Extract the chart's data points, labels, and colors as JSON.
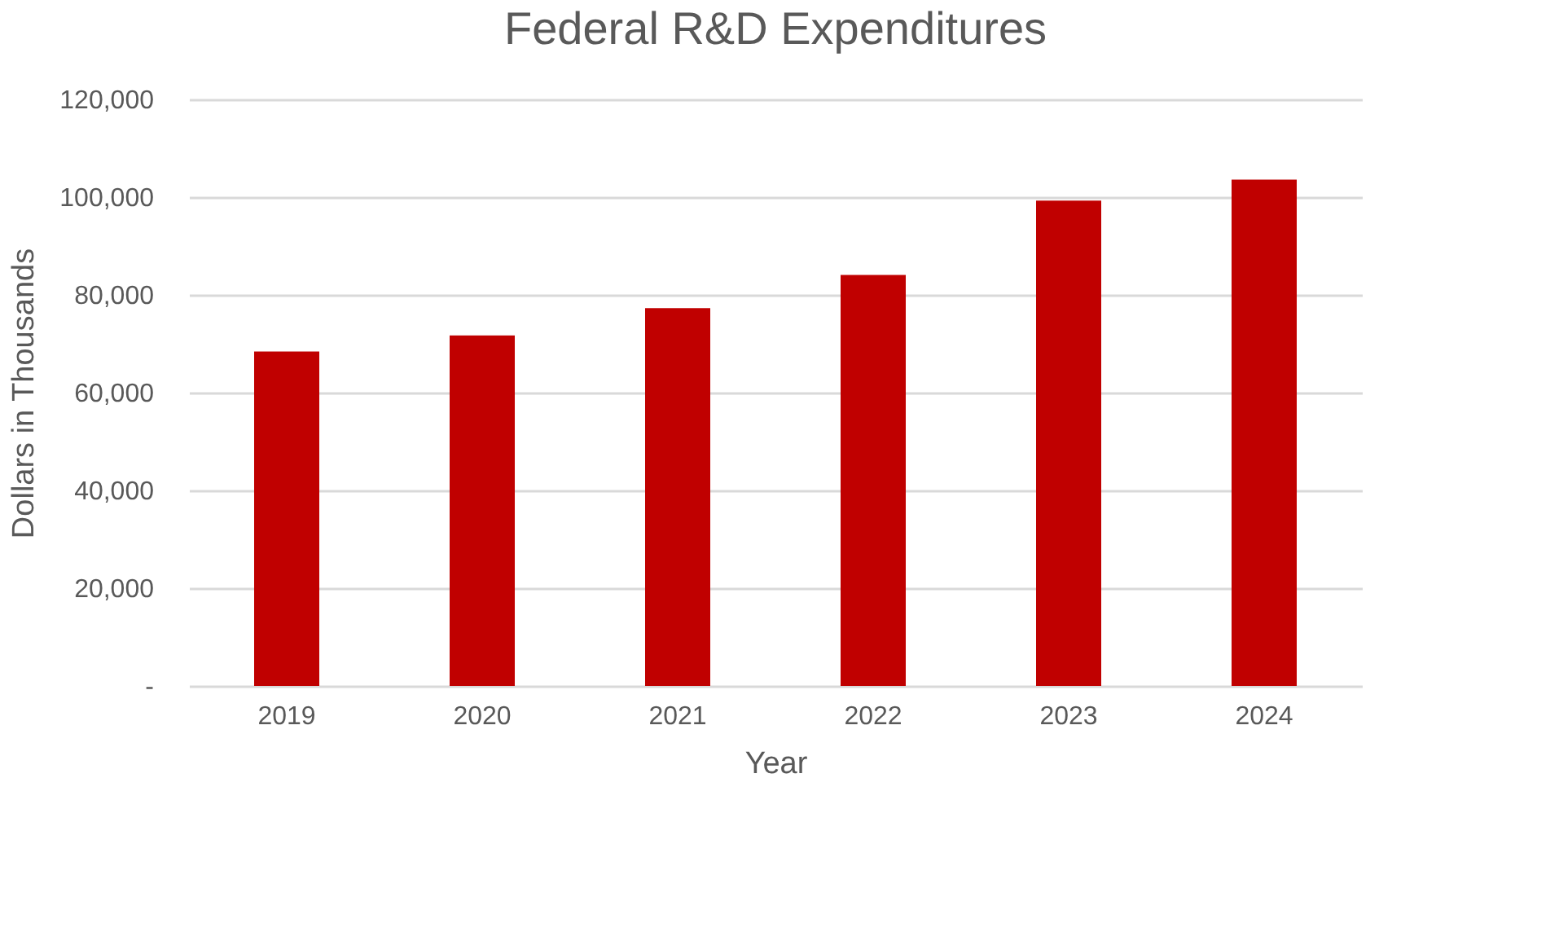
{
  "chart_data": {
    "type": "bar",
    "title": "Federal R&D Expenditures",
    "xlabel": "Year",
    "ylabel": "Dollars in Thousands",
    "categories": [
      "2019",
      "2020",
      "2021",
      "2022",
      "2023",
      "2024"
    ],
    "values": [
      68400,
      71700,
      77300,
      84100,
      99300,
      103600
    ],
    "color": "#c00000",
    "ylim": [
      0,
      120000
    ],
    "yticks": [
      {
        "value": 0,
        "label": "-"
      },
      {
        "value": 20000,
        "label": "20,000"
      },
      {
        "value": 40000,
        "label": "40,000"
      },
      {
        "value": 60000,
        "label": "60,000"
      },
      {
        "value": 80000,
        "label": "80,000"
      },
      {
        "value": 100000,
        "label": "100,000"
      },
      {
        "value": 120000,
        "label": "120,000"
      }
    ],
    "grid": "y"
  }
}
